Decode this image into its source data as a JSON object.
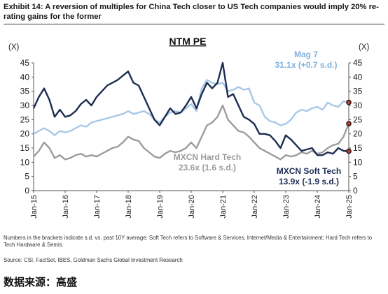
{
  "header": {
    "exhibit_title": "Exhibit 14: A reversion of multiples for China Tech closer to US Tech companies would imply 20% re-rating gains for the former"
  },
  "footnote": "Numbers in the brackets indicate s.d. vs. past 10Y average; Soft Tech refers to Software & Services, Internet/Media & Entertainment; Hard Tech refers to Tech Hardware & Semis.",
  "source": "Source: CSI, FactSet, IBES, Goldman Sachs Global Investment Research",
  "footer_label": "数据来源：高盛",
  "chart_data": {
    "type": "line",
    "title": "NTM PE",
    "ylabel_left": "(X)",
    "ylabel_right": "(X)",
    "ylim": [
      0,
      45
    ],
    "yticks": [
      0,
      5,
      10,
      15,
      20,
      25,
      30,
      35,
      40,
      45
    ],
    "xlim": [
      "2015-01",
      "2025-01"
    ],
    "xticks": [
      "Jan-15",
      "Jan-16",
      "Jan-17",
      "Jan-18",
      "Jan-19",
      "Jan-20",
      "Jan-21",
      "Jan-22",
      "Jan-23",
      "Jan-24",
      "Jan-25"
    ],
    "grid": false,
    "series": [
      {
        "name": "Mag 7",
        "annotation": "31.1x (+0.7 s.d.)",
        "color": "#a8c8e8",
        "marker_color": "#c0392b",
        "x": [
          "2015-01",
          "2015-03",
          "2015-05",
          "2015-07",
          "2015-09",
          "2015-11",
          "2016-01",
          "2016-03",
          "2016-05",
          "2016-07",
          "2016-09",
          "2016-11",
          "2017-01",
          "2017-03",
          "2017-05",
          "2017-07",
          "2017-09",
          "2017-11",
          "2018-01",
          "2018-03",
          "2018-05",
          "2018-07",
          "2018-09",
          "2018-11",
          "2019-01",
          "2019-03",
          "2019-05",
          "2019-07",
          "2019-09",
          "2019-11",
          "2020-01",
          "2020-03",
          "2020-05",
          "2020-07",
          "2020-09",
          "2020-11",
          "2021-01",
          "2021-03",
          "2021-05",
          "2021-07",
          "2021-09",
          "2021-11",
          "2022-01",
          "2022-03",
          "2022-05",
          "2022-07",
          "2022-09",
          "2022-11",
          "2023-01",
          "2023-03",
          "2023-05",
          "2023-07",
          "2023-09",
          "2023-11",
          "2024-01",
          "2024-03",
          "2024-05",
          "2024-07",
          "2024-09",
          "2024-11",
          "2025-01"
        ],
        "values": [
          20,
          21,
          22,
          21,
          19.5,
          21,
          20.5,
          21,
          22,
          23,
          22.5,
          24,
          24.5,
          25,
          25.5,
          26,
          26.5,
          27,
          28,
          27,
          27.5,
          28,
          27,
          25,
          24,
          26,
          27.5,
          28,
          27.5,
          29,
          30.5,
          28,
          36,
          39,
          38,
          37.5,
          38,
          35,
          35.5,
          36.5,
          35.5,
          36,
          31,
          30,
          26,
          24.5,
          24,
          23,
          23.5,
          25,
          27.5,
          28.5,
          28,
          29,
          29.5,
          28.5,
          31,
          30,
          29.5,
          31.5,
          31.1
        ]
      },
      {
        "name": "MXCN Hard Tech",
        "annotation": "23.6x (1.6 s.d.)",
        "color": "#9c9c9c",
        "marker_color": "#c0392b",
        "x": [
          "2015-01",
          "2015-03",
          "2015-05",
          "2015-07",
          "2015-09",
          "2015-11",
          "2016-01",
          "2016-03",
          "2016-05",
          "2016-07",
          "2016-09",
          "2016-11",
          "2017-01",
          "2017-03",
          "2017-05",
          "2017-07",
          "2017-09",
          "2017-11",
          "2018-01",
          "2018-03",
          "2018-05",
          "2018-07",
          "2018-09",
          "2018-11",
          "2019-01",
          "2019-03",
          "2019-05",
          "2019-07",
          "2019-09",
          "2019-11",
          "2020-01",
          "2020-03",
          "2020-05",
          "2020-07",
          "2020-09",
          "2020-11",
          "2021-01",
          "2021-03",
          "2021-05",
          "2021-07",
          "2021-09",
          "2021-11",
          "2022-01",
          "2022-03",
          "2022-05",
          "2022-07",
          "2022-09",
          "2022-11",
          "2023-01",
          "2023-03",
          "2023-05",
          "2023-07",
          "2023-09",
          "2023-11",
          "2024-01",
          "2024-03",
          "2024-05",
          "2024-07",
          "2024-09",
          "2024-11",
          "2025-01"
        ],
        "values": [
          12,
          14,
          17,
          15,
          11.5,
          12.5,
          11,
          11.5,
          12.5,
          13,
          12,
          12.5,
          12,
          13,
          14,
          15,
          15.5,
          17,
          19,
          18,
          17.5,
          15,
          13.5,
          12,
          11.5,
          13,
          14,
          13.5,
          14,
          15,
          17,
          15,
          19,
          23,
          24,
          26,
          30,
          25,
          23,
          21,
          20.5,
          19,
          17,
          15,
          14,
          13,
          12,
          11,
          12.5,
          12,
          12.5,
          13.5,
          13,
          14,
          13,
          13.5,
          15,
          16,
          16.5,
          19,
          23.6
        ]
      },
      {
        "name": "MXCN Soft Tech",
        "annotation": "13.9x (-1.9 s.d.)",
        "color": "#1c2c52",
        "marker_color": "#c0392b",
        "x": [
          "2015-01",
          "2015-03",
          "2015-05",
          "2015-07",
          "2015-09",
          "2015-11",
          "2016-01",
          "2016-03",
          "2016-05",
          "2016-07",
          "2016-09",
          "2016-11",
          "2017-01",
          "2017-03",
          "2017-05",
          "2017-07",
          "2017-09",
          "2017-11",
          "2018-01",
          "2018-03",
          "2018-05",
          "2018-07",
          "2018-09",
          "2018-11",
          "2019-01",
          "2019-03",
          "2019-05",
          "2019-07",
          "2019-09",
          "2019-11",
          "2020-01",
          "2020-03",
          "2020-05",
          "2020-07",
          "2020-09",
          "2020-11",
          "2021-01",
          "2021-03",
          "2021-05",
          "2021-07",
          "2021-09",
          "2021-11",
          "2022-01",
          "2022-03",
          "2022-05",
          "2022-07",
          "2022-09",
          "2022-11",
          "2023-01",
          "2023-03",
          "2023-05",
          "2023-07",
          "2023-09",
          "2023-11",
          "2024-01",
          "2024-03",
          "2024-05",
          "2024-07",
          "2024-09",
          "2024-11",
          "2025-01"
        ],
        "values": [
          29,
          33,
          36,
          32,
          26,
          28.5,
          26,
          26.5,
          28,
          30.5,
          32,
          30,
          33,
          35,
          37,
          38,
          39,
          40.5,
          42,
          38,
          37,
          33,
          29,
          25,
          23,
          26,
          29,
          27,
          27.5,
          30,
          33,
          29,
          34,
          38,
          36,
          38,
          45,
          33,
          34,
          30,
          26,
          25,
          23.5,
          20,
          20,
          19.5,
          17.5,
          15,
          19.5,
          18,
          16,
          14,
          14.5,
          15,
          12.5,
          12.5,
          13.5,
          13,
          15,
          14,
          13.9
        ]
      }
    ]
  }
}
